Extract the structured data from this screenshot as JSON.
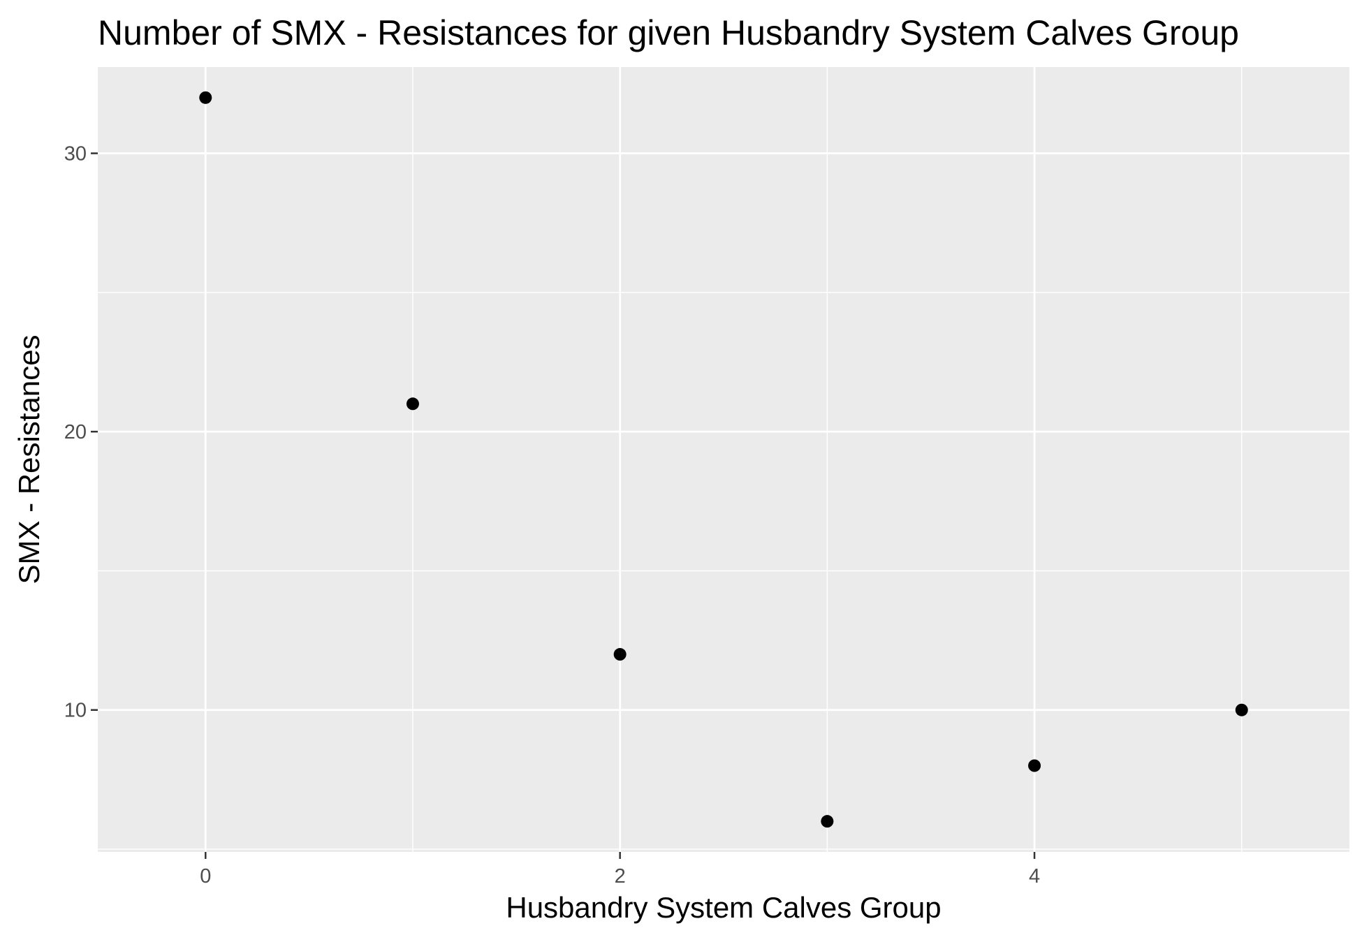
{
  "chart_data": {
    "type": "scatter",
    "title": "Number of SMX - Resistances for given Husbandry System Calves Group",
    "xlabel": "Husbandry System Calves Group",
    "ylabel": "SMX - Resistances",
    "x": [
      0,
      1,
      2,
      3,
      4,
      5
    ],
    "y": [
      32,
      21,
      12,
      6,
      8,
      10
    ],
    "xlim": [
      -0.52,
      5.52
    ],
    "ylim": [
      4.9,
      33.1
    ],
    "xticks": [
      0,
      2,
      4
    ],
    "yticks": [
      10,
      20,
      30
    ],
    "x_minor_grid": [
      1,
      3,
      5
    ],
    "y_minor_grid": [
      5,
      15,
      25
    ],
    "grid": true,
    "panel_background": "#ebebeb",
    "grid_color": "#ffffff",
    "point_color": "#000000"
  }
}
